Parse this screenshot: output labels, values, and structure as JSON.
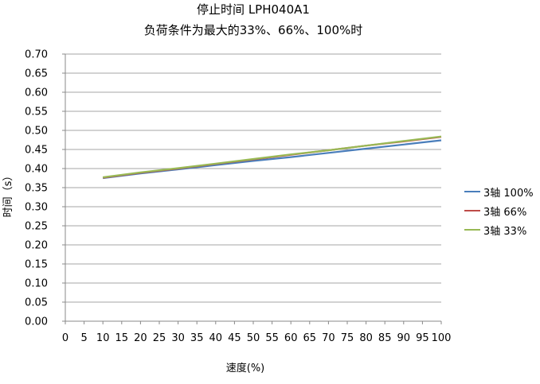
{
  "chart_data": {
    "type": "line",
    "title": "停止时间 LPH040A1",
    "subtitle": "负荷条件为最大的33%、66%、100%时",
    "xlabel": "速度(%)",
    "ylabel": "时间（s）",
    "xlim": [
      0,
      100
    ],
    "ylim": [
      0,
      0.7
    ],
    "x_ticks": [
      "0",
      "5",
      "10",
      "15",
      "20",
      "25",
      "30",
      "35",
      "40",
      "45",
      "50",
      "55",
      "60",
      "65",
      "70",
      "75",
      "80",
      "85",
      "90",
      "95",
      "100"
    ],
    "y_ticks": [
      "0.00",
      "0.05",
      "0.10",
      "0.15",
      "0.20",
      "0.25",
      "0.30",
      "0.35",
      "0.40",
      "0.45",
      "0.50",
      "0.55",
      "0.60",
      "0.65",
      "0.70"
    ],
    "grid": true,
    "legend": "right",
    "series": [
      {
        "name": "3轴  100%",
        "color": "#4a7ebb",
        "x": [
          10,
          20,
          30,
          40,
          50,
          60,
          70,
          80,
          90,
          100
        ],
        "y": [
          0.375,
          0.387,
          0.398,
          0.409,
          0.42,
          0.43,
          0.441,
          0.452,
          0.463,
          0.474
        ]
      },
      {
        "name": "3轴  66%",
        "color": "#be4b48",
        "x": [
          10,
          20,
          30,
          40,
          50,
          60,
          70,
          80,
          90,
          100
        ],
        "y": [
          0.376,
          0.389,
          0.4,
          0.412,
          0.424,
          0.436,
          0.448,
          0.46,
          0.471,
          0.483
        ]
      },
      {
        "name": "3轴  33%",
        "color": "#98b954",
        "x": [
          10,
          20,
          30,
          40,
          50,
          60,
          70,
          80,
          90,
          100
        ],
        "y": [
          0.377,
          0.39,
          0.401,
          0.413,
          0.425,
          0.437,
          0.448,
          0.46,
          0.472,
          0.484
        ]
      }
    ]
  }
}
